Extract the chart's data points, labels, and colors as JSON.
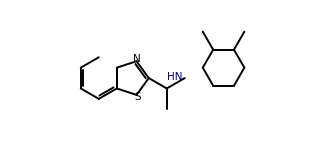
{
  "background": "#ffffff",
  "bond_color": "#000000",
  "bond_lw": 1.4,
  "N_label": "N",
  "S_label": "S",
  "HN_label": "HN",
  "label_color_NS": "#000000",
  "label_color_HN": "#000080",
  "label_fontsize": 7.5,
  "xlim": [
    0,
    10
  ],
  "ylim": [
    0.2,
    5.2
  ],
  "figw": 3.18,
  "figh": 1.5,
  "dpi": 100
}
